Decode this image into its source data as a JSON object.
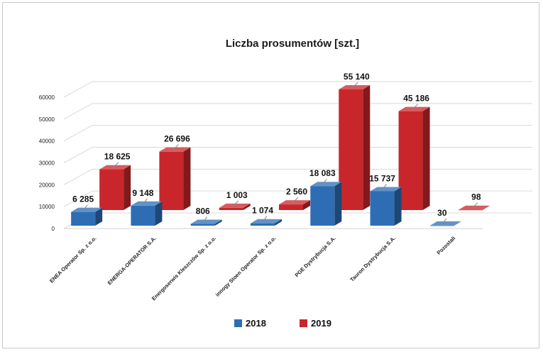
{
  "chart_data": {
    "type": "bar",
    "title": "Liczba prosumentów [szt.]",
    "categories": [
      "ENEA Operator Sp. z o.o.",
      "ENERGA-OPERATOR S.A.",
      "Energoserwis Kleszczów Sp. z o.o.",
      "innogy Stoen Operator Sp. z o.o.",
      "PGE Dystrybucja S.A.",
      "Tauron Dystrybucja S.A.",
      "Pozostali"
    ],
    "series": [
      {
        "name": "2018",
        "color": "#2e6db4",
        "values": [
          6285,
          9148,
          806,
          1074,
          18083,
          15737,
          30
        ],
        "labels": [
          "6 285",
          "9 148",
          "806",
          "1 074",
          "18 083",
          "15 737",
          "30"
        ]
      },
      {
        "name": "2019",
        "color": "#c8262b",
        "values": [
          18625,
          26696,
          1003,
          2560,
          55140,
          45186,
          98
        ],
        "labels": [
          "18 625",
          "26 696",
          "1 003",
          "2 560",
          "55 140",
          "45 186",
          "98"
        ]
      }
    ],
    "yticks": [
      "0",
      "10000",
      "20000",
      "30000",
      "40000",
      "50000",
      "60000"
    ],
    "ylim": [
      0,
      60000
    ],
    "grid": true,
    "legend_position": "bottom",
    "style": "3d-clustered-column"
  }
}
